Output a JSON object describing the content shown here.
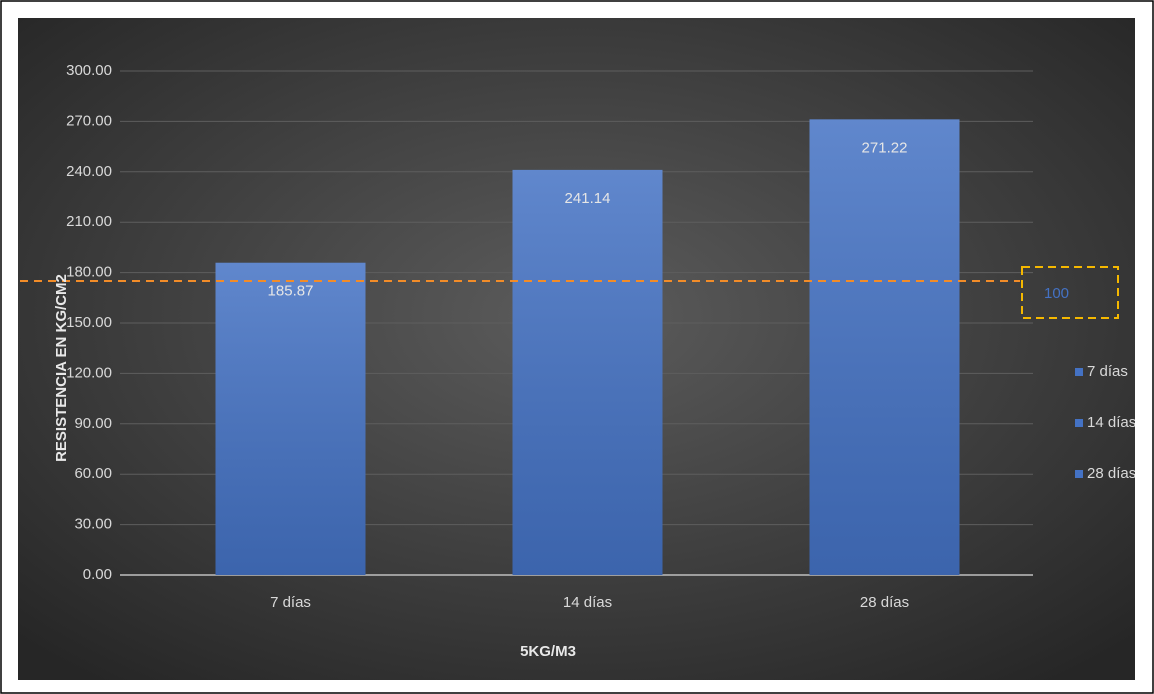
{
  "chart_data": {
    "type": "bar",
    "x_label": "5KG/M3",
    "y_label": "RESISTENCIA EN KG/CM2",
    "categories": [
      "7 días",
      "14 días",
      "28 días"
    ],
    "values": [
      185.87,
      241.14,
      271.22
    ],
    "color": "#4472c4",
    "ylim": [
      0,
      300
    ],
    "yticks": [
      {
        "value": 0,
        "label": "0.00"
      },
      {
        "value": 30,
        "label": "30.00"
      },
      {
        "value": 60,
        "label": "60.00"
      },
      {
        "value": 90,
        "label": "90.00"
      },
      {
        "value": 120,
        "label": "120.00"
      },
      {
        "value": 150,
        "label": "150.00"
      },
      {
        "value": 180,
        "label": "180.00"
      },
      {
        "value": 210,
        "label": "210.00"
      },
      {
        "value": 240,
        "label": "240.00"
      },
      {
        "value": 270,
        "label": "270.00"
      },
      {
        "value": 300,
        "label": "300.00"
      }
    ],
    "grid": true,
    "legend": "right",
    "reference_line": {
      "value": 175,
      "color": "#f28c28",
      "label": "100",
      "label_color": "#4472c4",
      "box_color": "#f5b800"
    }
  }
}
